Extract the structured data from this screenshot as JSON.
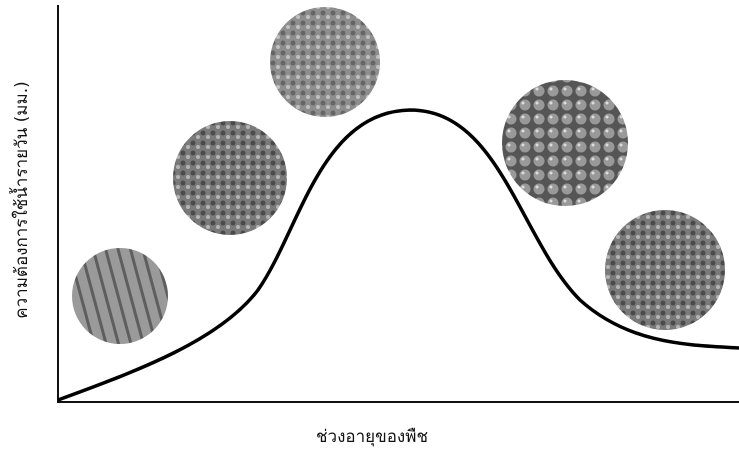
{
  "axes": {
    "y_label": "ความต้องการใช้น้ำรายวัน (มม.)",
    "x_label": "ช่วงอายุของพืช"
  }
}
